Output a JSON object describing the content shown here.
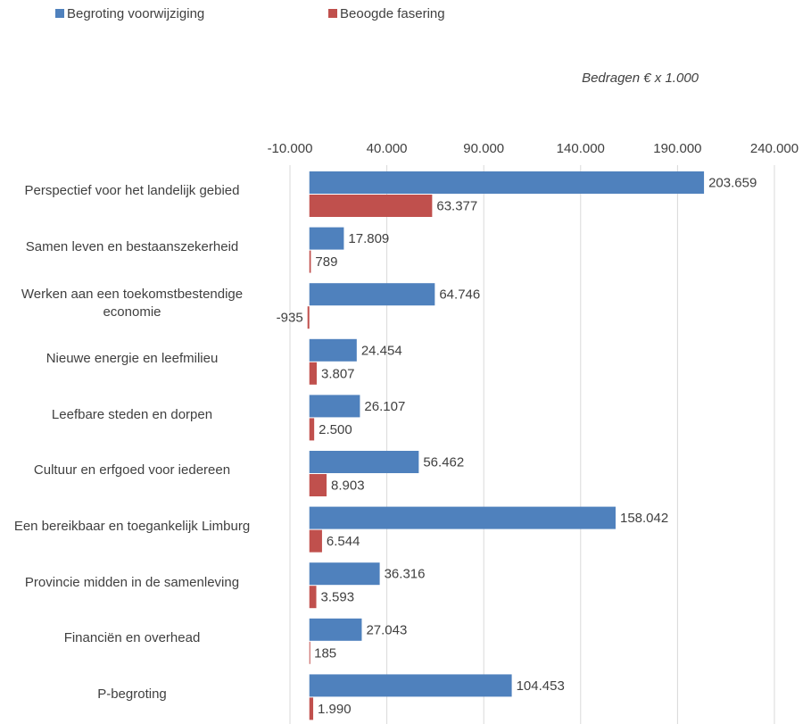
{
  "chart_data": {
    "type": "bar",
    "orientation": "horizontal",
    "annotation": "Bedragen € x 1.000",
    "categories": [
      "Perspectief voor het landelijk gebied",
      "Samen leven en bestaanszekerheid",
      "Werken aan een toekomstbestendige economie",
      "Nieuwe energie en leefmilieu",
      "Leefbare steden en dorpen",
      "Cultuur en erfgoed voor iedereen",
      "Een bereikbaar en toegankelijk Limburg",
      "Provincie midden in de samenleving",
      "Financiën en overhead",
      "P-begroting"
    ],
    "series": [
      {
        "name": "Begroting voorwijziging",
        "color": "#4f81bd",
        "values": [
          203659,
          17809,
          64746,
          24454,
          26107,
          56462,
          158042,
          36316,
          27043,
          104453
        ],
        "value_labels": [
          "203.659",
          "17.809",
          "64.746",
          "24.454",
          "26.107",
          "56.462",
          "158.042",
          "36.316",
          "27.043",
          "104.453"
        ]
      },
      {
        "name": "Beoogde fasering",
        "color": "#c0504d",
        "values": [
          63377,
          789,
          -935,
          3807,
          2500,
          8903,
          6544,
          3593,
          185,
          1990
        ],
        "value_labels": [
          "63.377",
          "789",
          "-935",
          "3.807",
          "2.500",
          "8.903",
          "6.544",
          "3.593",
          "185",
          "1.990"
        ]
      }
    ],
    "xlim": [
      -10000,
      240000
    ],
    "xticks": [
      {
        "value": -10000,
        "label": "-10.000"
      },
      {
        "value": 40000,
        "label": "40.000"
      },
      {
        "value": 90000,
        "label": "90.000"
      },
      {
        "value": 140000,
        "label": "140.000"
      },
      {
        "value": 190000,
        "label": "190.000"
      },
      {
        "value": 240000,
        "label": "240.000"
      }
    ],
    "grid": true,
    "legend": "top"
  }
}
